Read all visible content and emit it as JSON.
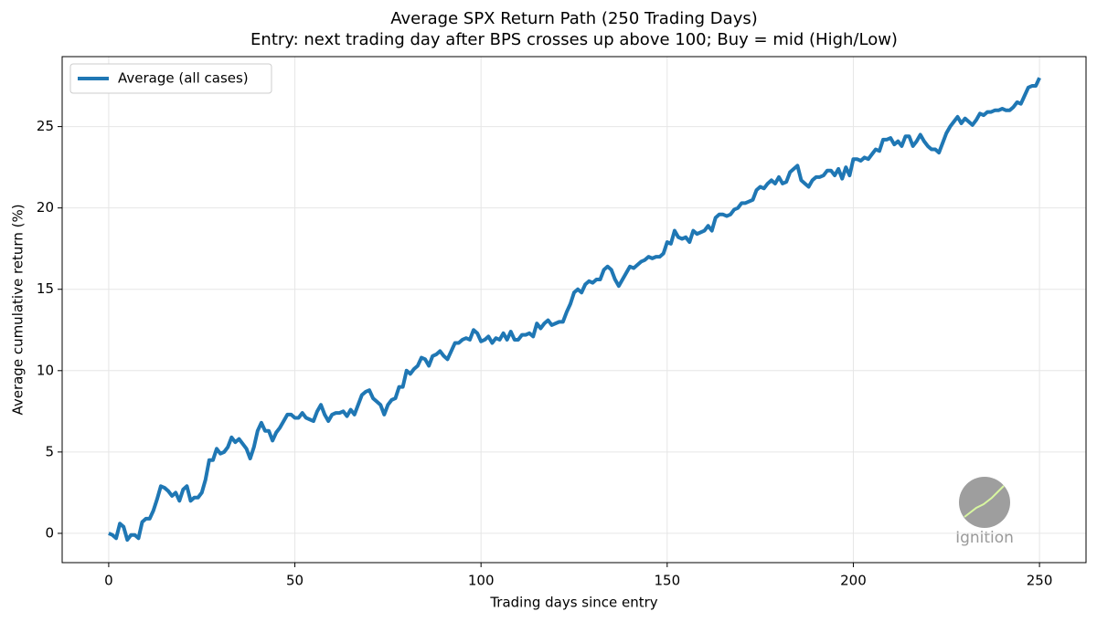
{
  "chart_data": {
    "type": "line",
    "title": "Average SPX Return Path (250 Trading Days)",
    "subtitle": "Entry: next trading day after BPS crosses up above 100; Buy = mid (High/Low)",
    "x_label": "Trading days since entry",
    "y_label": "Average cumulative return (%)",
    "watermark": "Ignition",
    "legend": "upper left",
    "grid": true,
    "xlim": [
      -12.5,
      262.5
    ],
    "ylim": [
      -1.8,
      29.3
    ],
    "xticks": [
      0,
      50,
      100,
      150,
      200,
      250
    ],
    "yticks": [
      0,
      5,
      10,
      15,
      20,
      25
    ],
    "x": [
      0,
      1,
      2,
      3,
      4,
      5,
      6,
      7,
      8,
      9,
      10,
      11,
      12,
      13,
      14,
      15,
      16,
      17,
      18,
      19,
      20,
      21,
      22,
      23,
      24,
      25,
      26,
      27,
      28,
      29,
      30,
      31,
      32,
      33,
      34,
      35,
      36,
      37,
      38,
      39,
      40,
      41,
      42,
      43,
      44,
      45,
      46,
      47,
      48,
      49,
      50,
      51,
      52,
      53,
      54,
      55,
      56,
      57,
      58,
      59,
      60,
      61,
      62,
      63,
      64,
      65,
      66,
      67,
      68,
      69,
      70,
      71,
      72,
      73,
      74,
      75,
      76,
      77,
      78,
      79,
      80,
      81,
      82,
      83,
      84,
      85,
      86,
      87,
      88,
      89,
      90,
      91,
      92,
      93,
      94,
      95,
      96,
      97,
      98,
      99,
      100,
      101,
      102,
      103,
      104,
      105,
      106,
      107,
      108,
      109,
      110,
      111,
      112,
      113,
      114,
      115,
      116,
      117,
      118,
      119,
      120,
      121,
      122,
      123,
      124,
      125,
      126,
      127,
      128,
      129,
      130,
      131,
      132,
      133,
      134,
      135,
      136,
      137,
      138,
      139,
      140,
      141,
      142,
      143,
      144,
      145,
      146,
      147,
      148,
      149,
      150,
      151,
      152,
      153,
      154,
      155,
      156,
      157,
      158,
      159,
      160,
      161,
      162,
      163,
      164,
      165,
      166,
      167,
      168,
      169,
      170,
      171,
      172,
      173,
      174,
      175,
      176,
      177,
      178,
      179,
      180,
      181,
      182,
      183,
      184,
      185,
      186,
      187,
      188,
      189,
      190,
      191,
      192,
      193,
      194,
      195,
      196,
      197,
      198,
      199,
      200,
      201,
      202,
      203,
      204,
      205,
      206,
      207,
      208,
      209,
      210,
      211,
      212,
      213,
      214,
      215,
      216,
      217,
      218,
      219,
      220,
      221,
      222,
      223,
      224,
      225,
      226,
      227,
      228,
      229,
      230,
      231,
      232,
      233,
      234,
      235,
      236,
      237,
      238,
      239,
      240,
      241,
      242,
      243,
      244,
      245,
      246,
      247,
      248,
      249,
      250
    ],
    "series": [
      {
        "name": "Average (all cases)",
        "color": "#1f77b4",
        "values": [
          0,
          -0.1,
          -0.3,
          0.6,
          0.4,
          -0.4,
          -0.1,
          -0.1,
          -0.3,
          0.7,
          0.9,
          0.9,
          1.4,
          2.1,
          2.9,
          2.8,
          2.6,
          2.3,
          2.5,
          2.0,
          2.7,
          2.9,
          2.0,
          2.2,
          2.2,
          2.5,
          3.3,
          4.5,
          4.5,
          5.2,
          4.9,
          5.0,
          5.3,
          5.9,
          5.6,
          5.8,
          5.5,
          5.2,
          4.6,
          5.3,
          6.3,
          6.8,
          6.3,
          6.3,
          5.7,
          6.2,
          6.5,
          6.9,
          7.3,
          7.3,
          7.1,
          7.1,
          7.4,
          7.1,
          7.0,
          6.9,
          7.5,
          7.9,
          7.3,
          6.9,
          7.3,
          7.4,
          7.4,
          7.5,
          7.2,
          7.6,
          7.3,
          7.9,
          8.5,
          8.7,
          8.8,
          8.3,
          8.1,
          7.9,
          7.3,
          7.9,
          8.2,
          8.3,
          9.0,
          9.0,
          10.0,
          9.8,
          10.1,
          10.3,
          10.8,
          10.7,
          10.3,
          10.9,
          11.0,
          11.2,
          10.9,
          10.7,
          11.2,
          11.7,
          11.7,
          11.9,
          12.0,
          11.9,
          12.5,
          12.3,
          11.8,
          11.9,
          12.1,
          11.7,
          12.0,
          11.9,
          12.3,
          11.9,
          12.4,
          11.9,
          11.9,
          12.2,
          12.2,
          12.3,
          12.1,
          12.9,
          12.6,
          12.9,
          13.1,
          12.8,
          12.9,
          13.0,
          13.0,
          13.6,
          14.1,
          14.8,
          15.0,
          14.8,
          15.3,
          15.5,
          15.4,
          15.6,
          15.6,
          16.2,
          16.4,
          16.2,
          15.6,
          15.2,
          15.6,
          16.0,
          16.4,
          16.3,
          16.5,
          16.7,
          16.8,
          17.0,
          16.9,
          17.0,
          17.0,
          17.2,
          17.9,
          17.8,
          18.6,
          18.2,
          18.1,
          18.2,
          17.9,
          18.6,
          18.4,
          18.5,
          18.6,
          18.9,
          18.6,
          19.4,
          19.6,
          19.6,
          19.5,
          19.6,
          19.9,
          20.0,
          20.3,
          20.3,
          20.4,
          20.5,
          21.1,
          21.3,
          21.2,
          21.5,
          21.7,
          21.5,
          21.9,
          21.5,
          21.6,
          22.2,
          22.4,
          22.6,
          21.7,
          21.5,
          21.3,
          21.7,
          21.9,
          21.9,
          22.0,
          22.3,
          22.3,
          22.0,
          22.4,
          21.8,
          22.5,
          22.0,
          23.0,
          23.0,
          22.9,
          23.1,
          23.0,
          23.3,
          23.6,
          23.5,
          24.2,
          24.2,
          24.3,
          23.9,
          24.1,
          23.8,
          24.4,
          24.4,
          23.8,
          24.1,
          24.5,
          24.1,
          23.8,
          23.6,
          23.6,
          23.4,
          24.0,
          24.6,
          25.0,
          25.3,
          25.6,
          25.2,
          25.5,
          25.3,
          25.1,
          25.4,
          25.8,
          25.7,
          25.9,
          25.9,
          26.0,
          26.0,
          26.1,
          26.0,
          26.0,
          26.2,
          26.5,
          26.4,
          26.9,
          27.4,
          27.5,
          27.5,
          28.0
        ]
      }
    ]
  }
}
